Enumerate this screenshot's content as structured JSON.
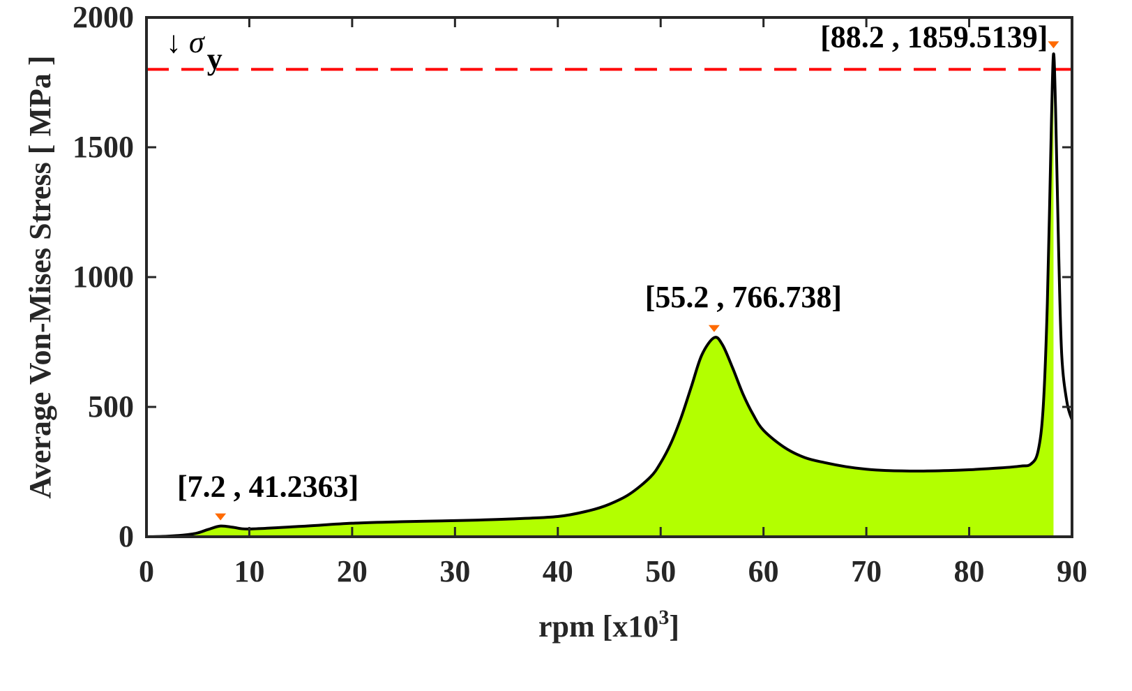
{
  "chart_data": {
    "type": "area",
    "title": "",
    "xlabel": "rpm [x10^3]",
    "xlabel_parts": {
      "base": "rpm [x10",
      "sup": "3",
      "end": "]"
    },
    "ylabel": "Average Von-Mises Stress [ MPa ]",
    "xlim": [
      0,
      90
    ],
    "ylim": [
      0,
      2000
    ],
    "grid": false,
    "legend": null,
    "x_ticks": [
      "0",
      "10",
      "20",
      "30",
      "40",
      "50",
      "60",
      "70",
      "80",
      "90"
    ],
    "y_ticks": [
      "0",
      "500",
      "1000",
      "1500",
      "2000"
    ],
    "fill_color": "#b3ff00",
    "line_color": "#000000",
    "series": [
      {
        "name": "Average Von-Mises Stress",
        "x": [
          0,
          2,
          4,
          5,
          6,
          7.2,
          8.5,
          10,
          15,
          20,
          25,
          30,
          35,
          40,
          43,
          45,
          47,
          49,
          50,
          51,
          52,
          53,
          54,
          55.2,
          56,
          57,
          58,
          59,
          60,
          62,
          64,
          66,
          68,
          70,
          72,
          75,
          78,
          80,
          83,
          85,
          86,
          86.7,
          87.2,
          87.6,
          88.0,
          88.2,
          88.4,
          88.7,
          89.0,
          89.5,
          90
        ],
        "y": [
          0,
          2,
          8,
          15,
          28,
          41.2363,
          36,
          30,
          40,
          52,
          58,
          62,
          68,
          78,
          100,
          125,
          165,
          230,
          285,
          360,
          460,
          580,
          700,
          766.738,
          740,
          650,
          550,
          470,
          410,
          345,
          305,
          285,
          270,
          260,
          255,
          253,
          255,
          258,
          265,
          272,
          280,
          330,
          500,
          900,
          1600,
          1859.5139,
          1650,
          1100,
          700,
          520,
          450
        ]
      }
    ],
    "reference_line": {
      "label": "σ",
      "subscript": "y",
      "arrow": "↓",
      "value": 1800,
      "color": "#ff0000",
      "style": "dashed"
    },
    "annotations": [
      {
        "x": 7.2,
        "y": 41.2363,
        "text": "[7.2 , 41.2363]",
        "marker_color": "#ff6a00"
      },
      {
        "x": 55.2,
        "y": 766.738,
        "text": "[55.2 , 766.738]",
        "marker_color": "#ff6a00"
      },
      {
        "x": 88.2,
        "y": 1859.5139,
        "text": "[88.2 , 1859.5139]",
        "marker_color": "#ff6a00"
      }
    ]
  }
}
